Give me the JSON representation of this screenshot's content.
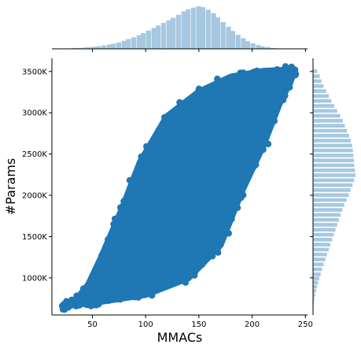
{
  "chart_data": {
    "type": "scatter",
    "subtype": "jointplot",
    "title": "",
    "xlabel": "MMACs",
    "ylabel": "#Params",
    "xlim": [
      12,
      252
    ],
    "ylim": [
      550,
      3660
    ],
    "x_ticks": [
      50,
      100,
      150,
      200,
      250
    ],
    "x_tick_labels": [
      "50",
      "100",
      "150",
      "200",
      "250"
    ],
    "y_ticks": [
      1000,
      1500,
      2000,
      2500,
      3000,
      3500
    ],
    "y_tick_labels": [
      "1000K",
      "1500K",
      "2000K",
      "2500K",
      "3000K",
      "3500K"
    ],
    "grid": false,
    "legend": "none",
    "colors": {
      "points": "#1f77b4",
      "hist": "#a6c8e0",
      "spine": "#000000"
    },
    "scatter_region": {
      "description": "dense point cloud filling a tilted ellipse",
      "outline": [
        [
          22,
          660
        ],
        [
          30,
          690
        ],
        [
          44,
          850
        ],
        [
          58,
          1230
        ],
        [
          78,
          1830
        ],
        [
          95,
          2400
        ],
        [
          120,
          2950
        ],
        [
          150,
          3250
        ],
        [
          180,
          3430
        ],
        [
          210,
          3500
        ],
        [
          240,
          3520
        ],
        [
          236,
          3390
        ],
        [
          225,
          3100
        ],
        [
          210,
          2600
        ],
        [
          190,
          2050
        ],
        [
          170,
          1400
        ],
        [
          140,
          1000
        ],
        [
          100,
          800
        ],
        [
          60,
          720
        ],
        [
          35,
          680
        ]
      ]
    },
    "marginal_x": {
      "bins": [
        {
          "x": 24,
          "count": 1
        },
        {
          "x": 29,
          "count": 1
        },
        {
          "x": 33,
          "count": 2
        },
        {
          "x": 38,
          "count": 2
        },
        {
          "x": 43,
          "count": 3
        },
        {
          "x": 47,
          "count": 4
        },
        {
          "x": 52,
          "count": 5
        },
        {
          "x": 56,
          "count": 6
        },
        {
          "x": 61,
          "count": 8
        },
        {
          "x": 66,
          "count": 10
        },
        {
          "x": 70,
          "count": 12
        },
        {
          "x": 75,
          "count": 15
        },
        {
          "x": 80,
          "count": 19
        },
        {
          "x": 84,
          "count": 23
        },
        {
          "x": 89,
          "count": 27
        },
        {
          "x": 94,
          "count": 32
        },
        {
          "x": 98,
          "count": 37
        },
        {
          "x": 103,
          "count": 43
        },
        {
          "x": 108,
          "count": 49
        },
        {
          "x": 112,
          "count": 55
        },
        {
          "x": 117,
          "count": 61
        },
        {
          "x": 122,
          "count": 67
        },
        {
          "x": 126,
          "count": 73
        },
        {
          "x": 131,
          "count": 80
        },
        {
          "x": 136,
          "count": 88
        },
        {
          "x": 140,
          "count": 93
        },
        {
          "x": 145,
          "count": 97
        },
        {
          "x": 150,
          "count": 100
        },
        {
          "x": 154,
          "count": 98
        },
        {
          "x": 159,
          "count": 92
        },
        {
          "x": 164,
          "count": 84
        },
        {
          "x": 168,
          "count": 74
        },
        {
          "x": 173,
          "count": 63
        },
        {
          "x": 178,
          "count": 52
        },
        {
          "x": 182,
          "count": 42
        },
        {
          "x": 187,
          "count": 33
        },
        {
          "x": 192,
          "count": 25
        },
        {
          "x": 196,
          "count": 18
        },
        {
          "x": 201,
          "count": 13
        },
        {
          "x": 206,
          "count": 9
        },
        {
          "x": 210,
          "count": 6
        },
        {
          "x": 215,
          "count": 4
        },
        {
          "x": 220,
          "count": 2
        },
        {
          "x": 224,
          "count": 1
        }
      ]
    },
    "marginal_y": {
      "bins": [
        {
          "y": 640,
          "count": 1
        },
        {
          "y": 690,
          "count": 2
        },
        {
          "y": 740,
          "count": 3
        },
        {
          "y": 790,
          "count": 5
        },
        {
          "y": 840,
          "count": 7
        },
        {
          "y": 890,
          "count": 9
        },
        {
          "y": 940,
          "count": 12
        },
        {
          "y": 990,
          "count": 15
        },
        {
          "y": 1040,
          "count": 18
        },
        {
          "y": 1100,
          "count": 21
        },
        {
          "y": 1160,
          "count": 25
        },
        {
          "y": 1220,
          "count": 29
        },
        {
          "y": 1280,
          "count": 33
        },
        {
          "y": 1340,
          "count": 37
        },
        {
          "y": 1400,
          "count": 41
        },
        {
          "y": 1460,
          "count": 45
        },
        {
          "y": 1520,
          "count": 49
        },
        {
          "y": 1580,
          "count": 53
        },
        {
          "y": 1640,
          "count": 57
        },
        {
          "y": 1700,
          "count": 61
        },
        {
          "y": 1760,
          "count": 65
        },
        {
          "y": 1820,
          "count": 69
        },
        {
          "y": 1880,
          "count": 74
        },
        {
          "y": 1940,
          "count": 79
        },
        {
          "y": 2000,
          "count": 84
        },
        {
          "y": 2060,
          "count": 88
        },
        {
          "y": 2120,
          "count": 93
        },
        {
          "y": 2180,
          "count": 97
        },
        {
          "y": 2240,
          "count": 100
        },
        {
          "y": 2300,
          "count": 99
        },
        {
          "y": 2360,
          "count": 97
        },
        {
          "y": 2420,
          "count": 96
        },
        {
          "y": 2480,
          "count": 95
        },
        {
          "y": 2540,
          "count": 94
        },
        {
          "y": 2600,
          "count": 92
        },
        {
          "y": 2660,
          "count": 89
        },
        {
          "y": 2720,
          "count": 85
        },
        {
          "y": 2780,
          "count": 80
        },
        {
          "y": 2840,
          "count": 75
        },
        {
          "y": 2900,
          "count": 70
        },
        {
          "y": 2960,
          "count": 64
        },
        {
          "y": 3020,
          "count": 57
        },
        {
          "y": 3080,
          "count": 50
        },
        {
          "y": 3140,
          "count": 43
        },
        {
          "y": 3200,
          "count": 37
        },
        {
          "y": 3260,
          "count": 31
        },
        {
          "y": 3320,
          "count": 25
        },
        {
          "y": 3380,
          "count": 20
        },
        {
          "y": 3440,
          "count": 16
        },
        {
          "y": 3500,
          "count": 10
        }
      ]
    }
  }
}
